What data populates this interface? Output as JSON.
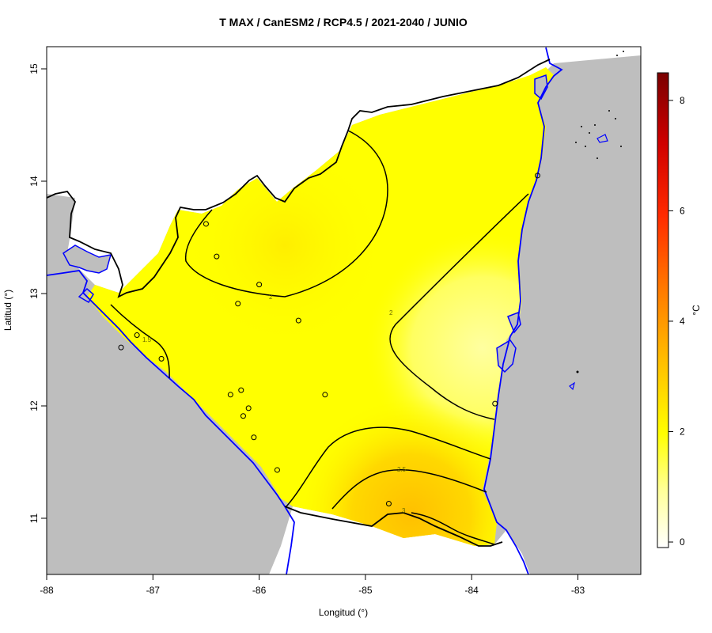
{
  "title": "T MAX / CanESM2 / RCP4.5 / 2021-2040 / JUNIO",
  "xlabel": "Longitud (°)",
  "ylabel": "Latitud (°)",
  "x_ticks": [
    "-88",
    "-87",
    "-86",
    "-85",
    "-84",
    "-83"
  ],
  "y_ticks": [
    "11",
    "12",
    "13",
    "14",
    "15"
  ],
  "colorbar": {
    "label": "°C",
    "ticks": [
      "0",
      "2",
      "4",
      "6",
      "8"
    ],
    "range": [
      -0.1,
      8.5
    ],
    "colors": [
      "#ffffff",
      "#ffff66",
      "#ffff00",
      "#ffcc00",
      "#ff8800",
      "#ff2200",
      "#cc0000",
      "#800000"
    ]
  },
  "contour_labels": [
    "2",
    "2",
    "1.5",
    "2.5",
    "3"
  ],
  "colors": {
    "ocean": "#bebebe",
    "coastline": "#0000ff",
    "border": "#000000"
  },
  "chart_data": {
    "type": "heatmap",
    "title": "T MAX / CanESM2 / RCP4.5 / 2021-2040 / JUNIO",
    "xlabel": "Longitud (°)",
    "ylabel": "Latitud (°)",
    "xlim": [
      -88,
      -82.4
    ],
    "ylim": [
      10.5,
      15.2
    ],
    "value_range": [
      -0.1,
      8.5
    ],
    "unit": "°C",
    "contour_levels": [
      1.5,
      2,
      2.5,
      3
    ],
    "stations": [
      {
        "lon": -86.5,
        "lat": 13.62
      },
      {
        "lon": -86.4,
        "lat": 13.33
      },
      {
        "lon": -86.0,
        "lat": 13.08
      },
      {
        "lon": -86.2,
        "lat": 12.91
      },
      {
        "lon": -85.63,
        "lat": 12.76
      },
      {
        "lon": -87.15,
        "lat": 12.63
      },
      {
        "lon": -87.3,
        "lat": 12.52
      },
      {
        "lon": -86.92,
        "lat": 12.42
      },
      {
        "lon": -86.27,
        "lat": 12.1
      },
      {
        "lon": -86.17,
        "lat": 12.14
      },
      {
        "lon": -86.1,
        "lat": 11.98
      },
      {
        "lon": -86.15,
        "lat": 11.91
      },
      {
        "lon": -86.05,
        "lat": 11.72
      },
      {
        "lon": -85.38,
        "lat": 12.1
      },
      {
        "lon": -85.83,
        "lat": 11.43
      },
      {
        "lon": -84.78,
        "lat": 11.13
      },
      {
        "lon": -83.78,
        "lat": 12.02
      },
      {
        "lon": -83.38,
        "lat": 14.05
      }
    ]
  }
}
